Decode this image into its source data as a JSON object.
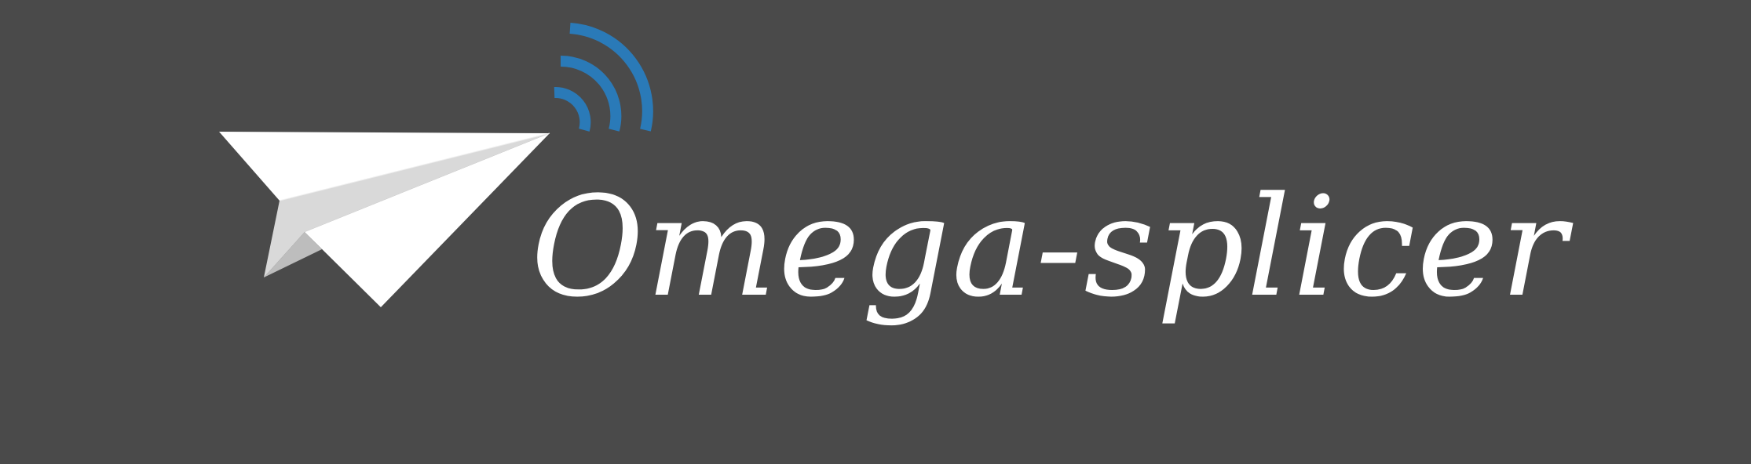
{
  "logo": {
    "wordmark": "Omega-splicer",
    "icon": "paper-plane-with-wireless-signal-icon",
    "colors": {
      "background": "#4a4a4a",
      "plane_light": "#ffffff",
      "plane_shade": "#d8d8d8",
      "plane_dark": "#bdbdbd",
      "signal": "#2a7ab8",
      "text": "#ffffff"
    }
  }
}
